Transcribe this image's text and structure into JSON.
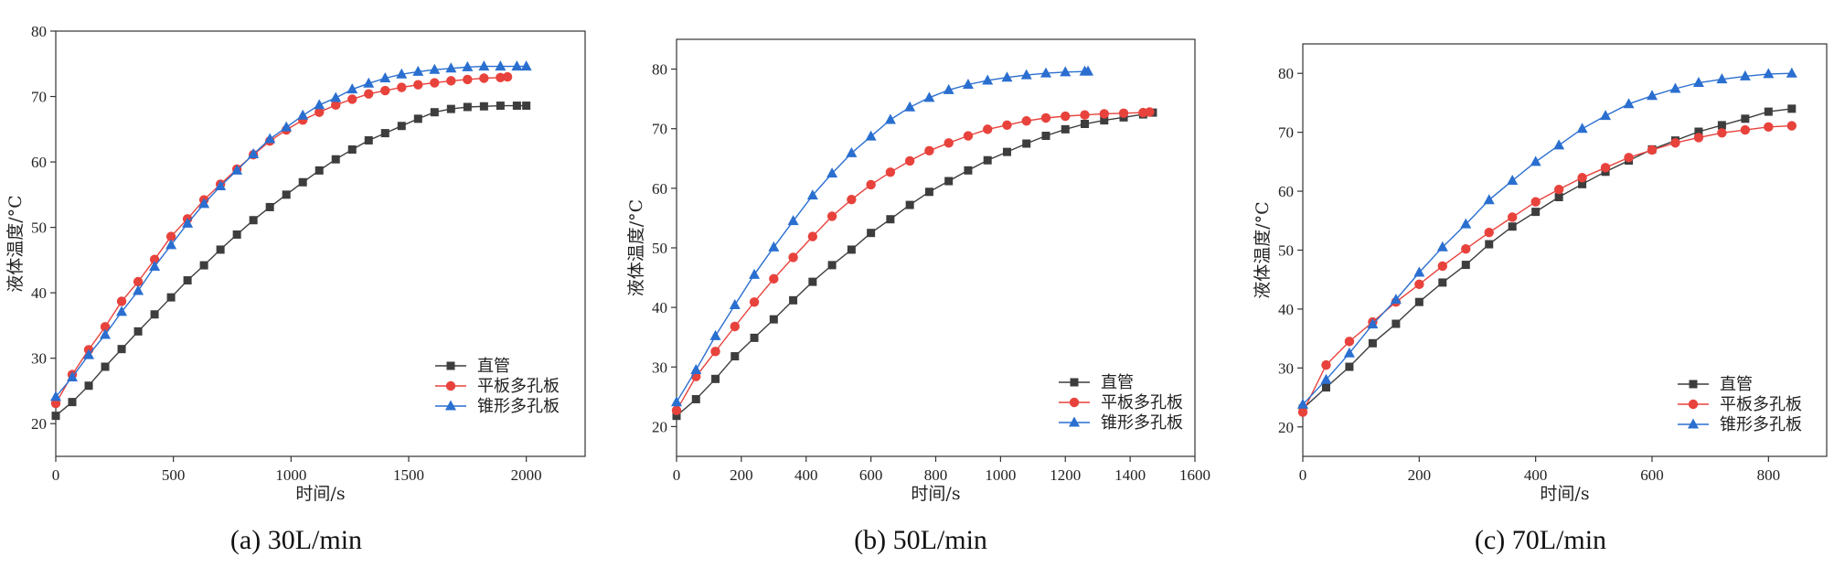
{
  "chart_data": [
    {
      "type": "line",
      "caption": "(a) 30L/min",
      "xlabel": "时间/s",
      "ylabel": "液体温度/°C",
      "xlim": [
        0,
        2250
      ],
      "ylim": [
        15,
        80
      ],
      "xticks": [
        0,
        500,
        1000,
        1500,
        2000
      ],
      "yticks": [
        20,
        30,
        40,
        50,
        60,
        70,
        80
      ],
      "legend_position": "lower-right",
      "series": [
        {
          "name": "直管",
          "color": "#3d3d3d",
          "marker": "square",
          "x": [
            0,
            70,
            140,
            210,
            280,
            350,
            420,
            490,
            560,
            630,
            700,
            770,
            840,
            910,
            980,
            1050,
            1120,
            1190,
            1260,
            1330,
            1400,
            1470,
            1540,
            1610,
            1680,
            1750,
            1820,
            1890,
            1960,
            2000
          ],
          "y": [
            21.2,
            23.3,
            25.8,
            28.7,
            31.4,
            34.1,
            36.7,
            39.3,
            41.9,
            44.2,
            46.6,
            48.9,
            51.1,
            53.1,
            55.0,
            56.9,
            58.7,
            60.4,
            61.9,
            63.3,
            64.4,
            65.5,
            66.6,
            67.6,
            68.1,
            68.4,
            68.5,
            68.6,
            68.6,
            68.6
          ]
        },
        {
          "name": "平板多孔板",
          "color": "#e8423c",
          "marker": "circle",
          "x": [
            0,
            70,
            140,
            210,
            280,
            350,
            420,
            490,
            560,
            630,
            700,
            770,
            840,
            910,
            980,
            1050,
            1120,
            1190,
            1260,
            1330,
            1400,
            1470,
            1540,
            1610,
            1680,
            1750,
            1820,
            1890,
            1920
          ],
          "y": [
            23.1,
            27.5,
            31.3,
            34.8,
            38.7,
            41.7,
            45.1,
            48.6,
            51.3,
            54.2,
            56.6,
            58.9,
            61.1,
            63.2,
            64.9,
            66.4,
            67.6,
            68.7,
            69.6,
            70.4,
            70.9,
            71.4,
            71.8,
            72.1,
            72.4,
            72.6,
            72.8,
            72.9,
            73.0
          ]
        },
        {
          "name": "锥形多孔板",
          "color": "#2a6fd0",
          "marker": "triangle",
          "x": [
            0,
            70,
            140,
            210,
            280,
            350,
            420,
            490,
            560,
            630,
            700,
            770,
            840,
            910,
            980,
            1050,
            1120,
            1190,
            1260,
            1330,
            1400,
            1470,
            1540,
            1610,
            1680,
            1750,
            1820,
            1890,
            1960,
            2000
          ],
          "y": [
            24.1,
            27.1,
            30.5,
            33.6,
            37.1,
            40.3,
            44.0,
            47.3,
            50.6,
            53.6,
            56.3,
            58.7,
            61.2,
            63.5,
            65.3,
            67.1,
            68.7,
            69.8,
            71.1,
            72.0,
            72.8,
            73.4,
            73.8,
            74.1,
            74.3,
            74.5,
            74.6,
            74.6,
            74.6,
            74.6
          ]
        }
      ]
    },
    {
      "type": "line",
      "caption": "(b) 50L/min",
      "xlabel": "时间/s",
      "ylabel": "液体温度/°C",
      "xlim": [
        0,
        1600
      ],
      "ylim": [
        15,
        85
      ],
      "xticks": [
        0,
        200,
        400,
        600,
        800,
        1000,
        1200,
        1400,
        1600
      ],
      "yticks": [
        20,
        30,
        40,
        50,
        60,
        70,
        80
      ],
      "legend_position": "lower-right",
      "series": [
        {
          "name": "直管",
          "color": "#3d3d3d",
          "marker": "square",
          "x": [
            0,
            60,
            120,
            180,
            240,
            300,
            360,
            420,
            480,
            540,
            600,
            660,
            720,
            780,
            840,
            900,
            960,
            1020,
            1080,
            1140,
            1200,
            1260,
            1320,
            1380,
            1440,
            1470
          ],
          "y": [
            21.8,
            24.6,
            28.0,
            31.8,
            34.9,
            38.0,
            41.2,
            44.3,
            47.1,
            49.7,
            52.5,
            54.8,
            57.2,
            59.4,
            61.2,
            63.0,
            64.7,
            66.1,
            67.5,
            68.8,
            69.9,
            70.8,
            71.4,
            71.9,
            72.4,
            72.7
          ]
        },
        {
          "name": "平板多孔板",
          "color": "#e8423c",
          "marker": "circle",
          "x": [
            0,
            60,
            120,
            180,
            240,
            300,
            360,
            420,
            480,
            540,
            600,
            660,
            720,
            780,
            840,
            900,
            960,
            1020,
            1080,
            1140,
            1200,
            1260,
            1320,
            1380,
            1440,
            1460
          ],
          "y": [
            22.7,
            28.4,
            32.6,
            36.8,
            40.9,
            44.8,
            48.4,
            51.9,
            55.3,
            58.1,
            60.6,
            62.7,
            64.6,
            66.3,
            67.6,
            68.8,
            69.9,
            70.6,
            71.3,
            71.8,
            72.1,
            72.3,
            72.5,
            72.6,
            72.7,
            72.8
          ]
        },
        {
          "name": "锥形多孔板",
          "color": "#2a6fd0",
          "marker": "triangle",
          "x": [
            0,
            60,
            120,
            180,
            240,
            300,
            360,
            420,
            480,
            540,
            600,
            660,
            720,
            780,
            840,
            900,
            960,
            1020,
            1080,
            1140,
            1200,
            1260,
            1270
          ],
          "y": [
            24.1,
            29.5,
            35.2,
            40.4,
            45.5,
            50.1,
            54.5,
            58.8,
            62.5,
            65.9,
            68.7,
            71.5,
            73.6,
            75.2,
            76.5,
            77.4,
            78.1,
            78.6,
            79.0,
            79.3,
            79.5,
            79.6,
            79.6
          ]
        }
      ]
    },
    {
      "type": "line",
      "caption": "(c) 70L/min",
      "xlabel": "时间/s",
      "ylabel": "液体温度/°C",
      "xlim": [
        0,
        900
      ],
      "ylim": [
        15,
        85
      ],
      "xticks": [
        0,
        200,
        400,
        600,
        800
      ],
      "yticks": [
        20,
        30,
        40,
        50,
        60,
        70,
        80
      ],
      "legend_position": "lower-right",
      "series": [
        {
          "name": "直管",
          "color": "#3d3d3d",
          "marker": "square",
          "x": [
            0,
            40,
            80,
            120,
            160,
            200,
            240,
            280,
            320,
            360,
            400,
            440,
            480,
            520,
            560,
            600,
            640,
            680,
            720,
            760,
            800,
            840
          ],
          "y": [
            23.1,
            26.7,
            30.2,
            34.2,
            37.5,
            41.2,
            44.5,
            47.5,
            51.0,
            54.0,
            56.5,
            59.0,
            61.2,
            63.3,
            65.2,
            67.1,
            68.6,
            70.1,
            71.2,
            72.3,
            73.5,
            74.0
          ]
        },
        {
          "name": "平板多孔板",
          "color": "#e8423c",
          "marker": "circle",
          "x": [
            0,
            40,
            80,
            120,
            160,
            200,
            240,
            280,
            320,
            360,
            400,
            440,
            480,
            520,
            560,
            600,
            640,
            680,
            720,
            760,
            800,
            840
          ],
          "y": [
            22.5,
            30.5,
            34.5,
            37.8,
            41.2,
            44.2,
            47.3,
            50.2,
            53.0,
            55.6,
            58.2,
            60.3,
            62.3,
            64.0,
            65.7,
            67.0,
            68.2,
            69.1,
            69.9,
            70.4,
            70.9,
            71.1
          ]
        },
        {
          "name": "锥形多孔板",
          "color": "#2a6fd0",
          "marker": "triangle",
          "x": [
            0,
            40,
            80,
            120,
            160,
            200,
            240,
            280,
            320,
            360,
            400,
            440,
            480,
            520,
            560,
            600,
            640,
            680,
            720,
            760,
            800,
            840
          ],
          "y": [
            23.8,
            28.0,
            32.5,
            37.4,
            41.6,
            46.2,
            50.5,
            54.4,
            58.5,
            61.8,
            65.0,
            67.8,
            70.6,
            72.8,
            74.8,
            76.2,
            77.4,
            78.4,
            79.0,
            79.5,
            79.9,
            80.0
          ]
        }
      ]
    }
  ]
}
